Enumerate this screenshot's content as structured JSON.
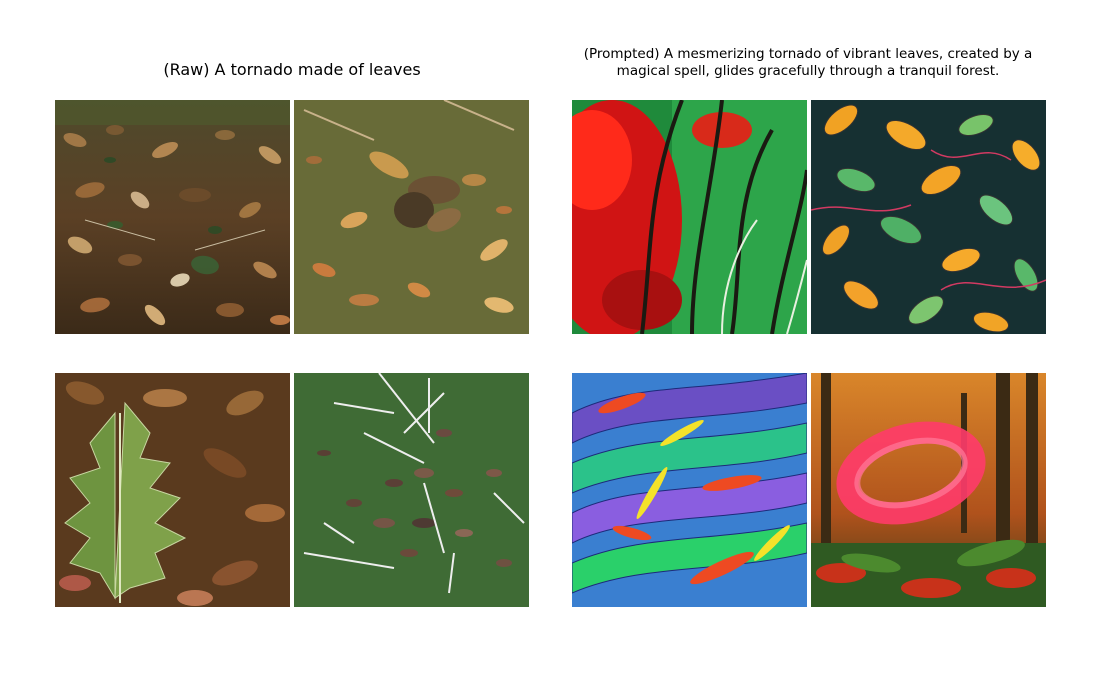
{
  "figure": {
    "panels": [
      {
        "title": "(Raw) A tornado made of leaves",
        "images": [
          {
            "subject": "brown-leaf-litter-on-grass"
          },
          {
            "subject": "dry-leaf-pile-on-grass"
          },
          {
            "subject": "green-oak-leaf-on-leaf-litter"
          },
          {
            "subject": "scattered-leaves-and-white-twigs-on-green"
          }
        ]
      },
      {
        "title": "(Prompted) A mesmerizing tornado of vibrant leaves, created by a magical spell, glides gracefully through a tranquil forest.",
        "images": [
          {
            "subject": "red-and-green-forest-painting"
          },
          {
            "subject": "orange-and-green-leaf-pattern"
          },
          {
            "subject": "colorful-swirling-feathers-pattern"
          },
          {
            "subject": "pink-swirl-in-autumn-forest"
          }
        ]
      }
    ]
  }
}
